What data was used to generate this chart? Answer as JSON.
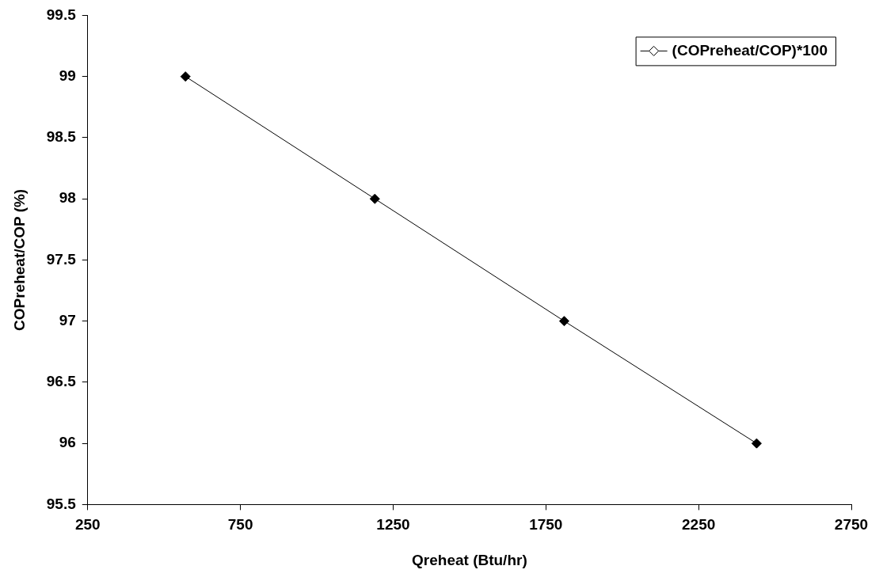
{
  "chart_data": {
    "type": "line",
    "xlabel": "Qreheat (Btu/hr)",
    "ylabel": "COPreheat/COP (%)",
    "x": [
      570,
      1190,
      1810,
      2440
    ],
    "series": [
      {
        "name": "(COPreheat/COP)*100",
        "color": "#000000",
        "values": [
          99,
          98,
          97,
          96
        ]
      }
    ],
    "xlim": [
      250,
      2750
    ],
    "xticks": [
      250,
      750,
      1250,
      1750,
      2250,
      2750
    ],
    "ylim": [
      95.5,
      99.5
    ],
    "yticks": [
      95.5,
      96,
      96.5,
      97,
      97.5,
      98,
      98.5,
      99,
      99.5
    ],
    "grid": false,
    "legend": "top right",
    "marker": "diamond",
    "line_style": "solid"
  }
}
